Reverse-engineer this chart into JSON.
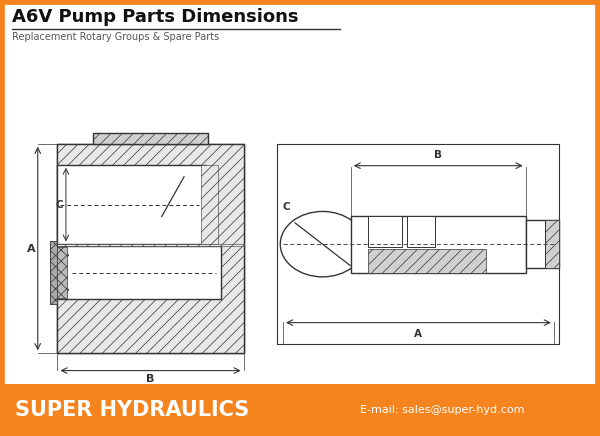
{
  "title": "A6V Pump Parts Dimensions",
  "subtitle": "Replacement Rotary Groups & Spare Parts",
  "footer_text": "SUPER HYDRAULICS",
  "footer_email": "E-mail: sales@super-hyd.com",
  "footer_bg": "#F5841F",
  "border_color": "#F5841F",
  "bg_color": "#FFFFFF",
  "line_color": "#333333",
  "title_color": "#111111",
  "subtitle_color": "#555555",
  "footer_text_color": "#FFFFFF",
  "hatch_lw": 0.4,
  "body_lw": 1.0
}
